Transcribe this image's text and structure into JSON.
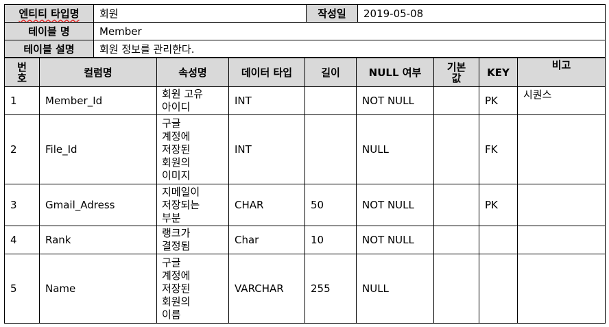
{
  "meta": {
    "entity_type_label": "엔티티 타입명",
    "entity_type_value": "회원",
    "written_date_label": "작성일",
    "written_date_value": "2019-05-08",
    "table_name_label": "테이블 명",
    "table_name_value": "Member",
    "table_desc_label": "테이블 설명",
    "table_desc_value": "회원 정보를 관리한다."
  },
  "columns": {
    "headers": [
      "번\n호",
      "컬럼명",
      "속성명",
      "데이터 타입",
      "길이",
      "NULL 여부",
      "기본\n값",
      "KEY",
      "비고"
    ],
    "rows": [
      {
        "no": "1",
        "column": "Member_Id",
        "attr": "회원 고유\n아이디",
        "type": "INT",
        "length": "",
        "nullable": "NOT NULL",
        "default": "",
        "key": "PK",
        "note": "시퀀스"
      },
      {
        "no": "2",
        "column": "File_Id",
        "attr": "구글\n계정에\n저장된\n회원의\n이미지",
        "type": "INT",
        "length": "",
        "nullable": "NULL",
        "default": "",
        "key": "FK",
        "note": ""
      },
      {
        "no": "3",
        "column": "Gmail_Adress",
        "attr": "지메일이\n저장되는\n부분",
        "type": "CHAR",
        "length": "50",
        "nullable": "NOT NULL",
        "default": "",
        "key": "PK",
        "note": ""
      },
      {
        "no": "4",
        "column": "Rank",
        "attr": "랭크가\n결정됨",
        "type": "Char",
        "length": "10",
        "nullable": "NOT NULL",
        "default": "",
        "key": "",
        "note": ""
      },
      {
        "no": "5",
        "column": "Name",
        "attr": "구글\n계정에\n저장된\n회원의\n이름",
        "type": "VARCHAR",
        "length": "255",
        "nullable": "NULL",
        "default": "",
        "key": "",
        "note": ""
      }
    ]
  }
}
